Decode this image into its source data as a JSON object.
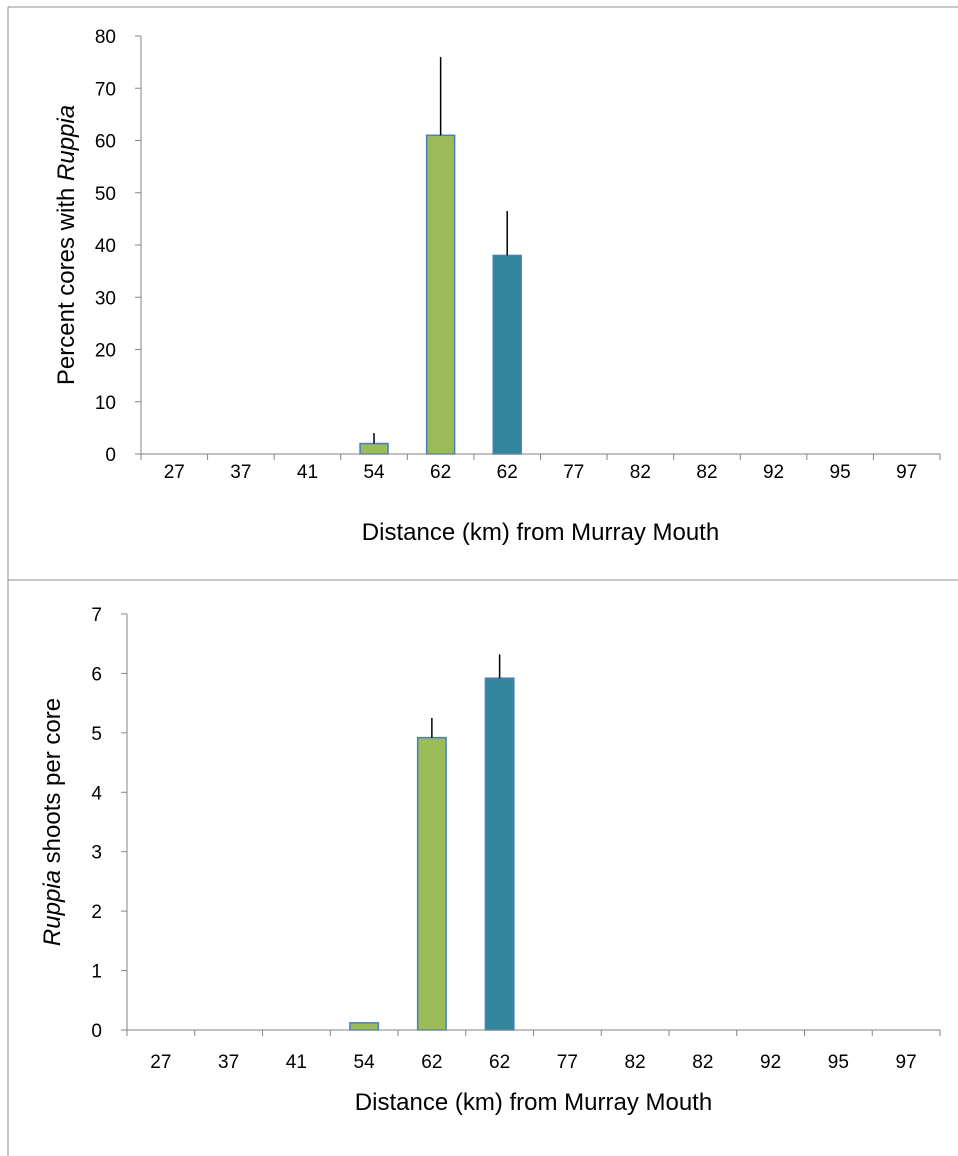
{
  "chart_data": [
    {
      "type": "bar",
      "categories": [
        "27",
        "37",
        "41",
        "54",
        "62",
        "62",
        "77",
        "82",
        "82",
        "92",
        "95",
        "97"
      ],
      "values": [
        0,
        0,
        0,
        2,
        61,
        38,
        0,
        0,
        0,
        0,
        0,
        0
      ],
      "error_plus": [
        0,
        0,
        0,
        2,
        15,
        8.5,
        0,
        0,
        0,
        0,
        0,
        0
      ],
      "bar_colors": [
        "#9bbb59",
        "#9bbb59",
        "#9bbb59",
        "#9bbb59",
        "#9bbb59",
        "#31859c",
        "#9bbb59",
        "#9bbb59",
        "#9bbb59",
        "#9bbb59",
        "#9bbb59",
        "#9bbb59"
      ],
      "ylim": [
        0,
        80
      ],
      "yticks": [
        0,
        10,
        20,
        30,
        40,
        50,
        60,
        70,
        80
      ],
      "xlabel": "Distance (km) from Murray Mouth",
      "ylabel_prefix": "Percent cores with ",
      "ylabel_italic": "Ruppia",
      "ylabel_suffix": "",
      "grid": false
    },
    {
      "type": "bar",
      "categories": [
        "27",
        "37",
        "41",
        "54",
        "62",
        "62",
        "77",
        "82",
        "82",
        "92",
        "95",
        "97"
      ],
      "values": [
        0,
        0,
        0,
        0.12,
        4.92,
        5.92,
        0,
        0,
        0,
        0,
        0,
        0
      ],
      "error_plus": [
        0,
        0,
        0,
        0,
        0.33,
        0.4,
        0,
        0,
        0,
        0,
        0,
        0
      ],
      "bar_colors": [
        "#9bbb59",
        "#9bbb59",
        "#9bbb59",
        "#9bbb59",
        "#9bbb59",
        "#31859c",
        "#9bbb59",
        "#9bbb59",
        "#9bbb59",
        "#9bbb59",
        "#9bbb59",
        "#9bbb59"
      ],
      "ylim": [
        0,
        7
      ],
      "yticks": [
        0,
        1,
        2,
        3,
        4,
        5,
        6,
        7
      ],
      "xlabel": "Distance (km) from Murray Mouth",
      "ylabel_prefix": "",
      "ylabel_italic": "Ruppia",
      "ylabel_suffix": " shoots per core",
      "grid": false
    }
  ]
}
